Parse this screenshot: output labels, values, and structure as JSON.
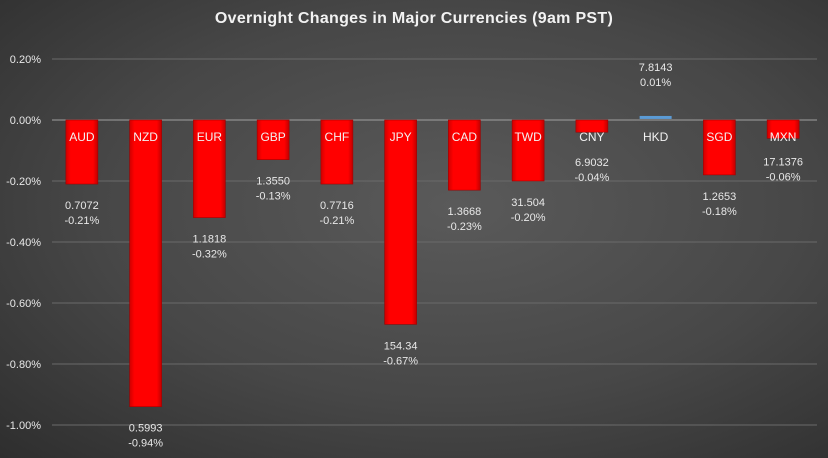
{
  "chart_data": {
    "type": "bar",
    "title": "Overnight Changes in Major Currencies (9am PST)",
    "categories": [
      "AUD",
      "NZD",
      "EUR",
      "GBP",
      "CHF",
      "JPY",
      "CAD",
      "TWD",
      "CNY",
      "HKD",
      "SGD",
      "MXN"
    ],
    "values": [
      -0.21,
      -0.94,
      -0.32,
      -0.13,
      -0.21,
      -0.67,
      -0.23,
      -0.2,
      -0.04,
      0.01,
      -0.18,
      -0.06
    ],
    "value_labels": [
      "-0.21%",
      "-0.94%",
      "-0.32%",
      "-0.13%",
      "-0.21%",
      "-0.67%",
      "-0.23%",
      "-0.20%",
      "-0.04%",
      "0.01%",
      "-0.18%",
      "-0.06%"
    ],
    "rates": [
      "0.7072",
      "0.5993",
      "1.1818",
      "1.3550",
      "0.7716",
      "154.34",
      "1.3668",
      "31.504",
      "6.9032",
      "7.8143",
      "1.2653",
      "17.1376"
    ],
    "ylim": [
      -1.0,
      0.2
    ],
    "yticks": [
      "0.20%",
      "0.00%",
      "-0.20%",
      "-0.40%",
      "-0.60%",
      "-0.80%",
      "-1.00%"
    ],
    "ytick_values": [
      0.2,
      0,
      -0.2,
      -0.4,
      -0.6,
      -0.8,
      -1.0
    ],
    "grid": true,
    "colors": {
      "negative": "#ff0000",
      "positive": "#5b9bd5",
      "text": "#e8e8e8",
      "grid": "#6a6a6a",
      "zero_line": "#a0a0a0"
    }
  }
}
